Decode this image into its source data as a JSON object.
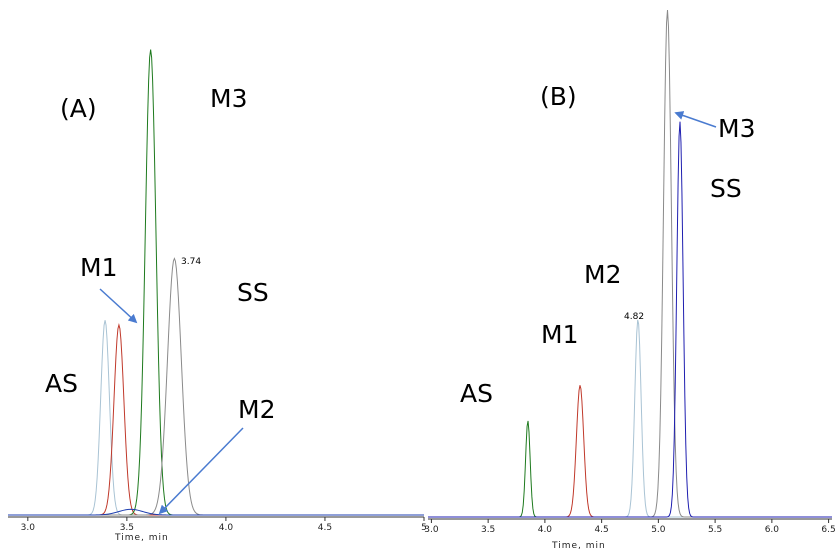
{
  "chart_data": [
    {
      "type": "line",
      "panel_label": "(A)",
      "xlabel": "Time, min",
      "xlim": [
        2.9,
        5.0
      ],
      "x_ticks": [
        3.0,
        3.5,
        4.0,
        4.5,
        5.0
      ],
      "x_tick_labels": [
        "3.0",
        "3.5",
        "4.0",
        "4.5",
        "5"
      ],
      "peak_annotation": {
        "x": 3.74,
        "text": "3.74"
      },
      "series": [
        {
          "name": "AS",
          "color": "#a9c3d4",
          "apex_x": 3.39,
          "rel_height": 0.41,
          "width": 0.022
        },
        {
          "name": "M1",
          "color": "#c0392b",
          "apex_x": 3.46,
          "rel_height": 0.4,
          "width": 0.025
        },
        {
          "name": "M3",
          "color": "#1e7a1e",
          "apex_x": 3.62,
          "rel_height": 0.98,
          "width": 0.027
        },
        {
          "name": "SS",
          "color": "#8a8a8a",
          "apex_x": 3.74,
          "rel_height": 0.54,
          "width": 0.035
        },
        {
          "name": "M2",
          "color": "#1f3fb0",
          "apex_x": 3.52,
          "rel_height": 0.012,
          "width": 0.06
        }
      ],
      "labels": {
        "AS": "AS",
        "M1": "M1",
        "M2": "M2",
        "M3": "M3",
        "SS": "SS"
      }
    },
    {
      "type": "line",
      "panel_label": "(B)",
      "xlabel": "Time, min",
      "xlim": [
        2.97,
        6.53
      ],
      "x_ticks": [
        3.0,
        3.5,
        4.0,
        4.5,
        5.0,
        5.5,
        6.0,
        6.5
      ],
      "x_tick_labels": [
        "3.0",
        "3.5",
        "4.0",
        "4.5",
        "5.0",
        "5.5",
        "6.0",
        "6.5"
      ],
      "peak_annotation": {
        "x": 4.82,
        "text": "4.82"
      },
      "series": [
        {
          "name": "AS",
          "color": "#1e7a1e",
          "apex_x": 3.85,
          "rel_height": 0.19,
          "width": 0.02
        },
        {
          "name": "M1",
          "color": "#c0392b",
          "apex_x": 4.31,
          "rel_height": 0.26,
          "width": 0.032
        },
        {
          "name": "M2",
          "color": "#a9c3d4",
          "apex_x": 4.82,
          "rel_height": 0.39,
          "width": 0.028
        },
        {
          "name": "SS",
          "color": "#8a8a8a",
          "apex_x": 5.08,
          "rel_height": 1.0,
          "width": 0.035
        },
        {
          "name": "M3",
          "color": "#1f1fb0",
          "apex_x": 5.19,
          "rel_height": 0.78,
          "width": 0.028
        }
      ],
      "labels": {
        "AS": "AS",
        "M1": "M1",
        "M2": "M2",
        "M3": "M3",
        "SS": "SS"
      }
    }
  ]
}
